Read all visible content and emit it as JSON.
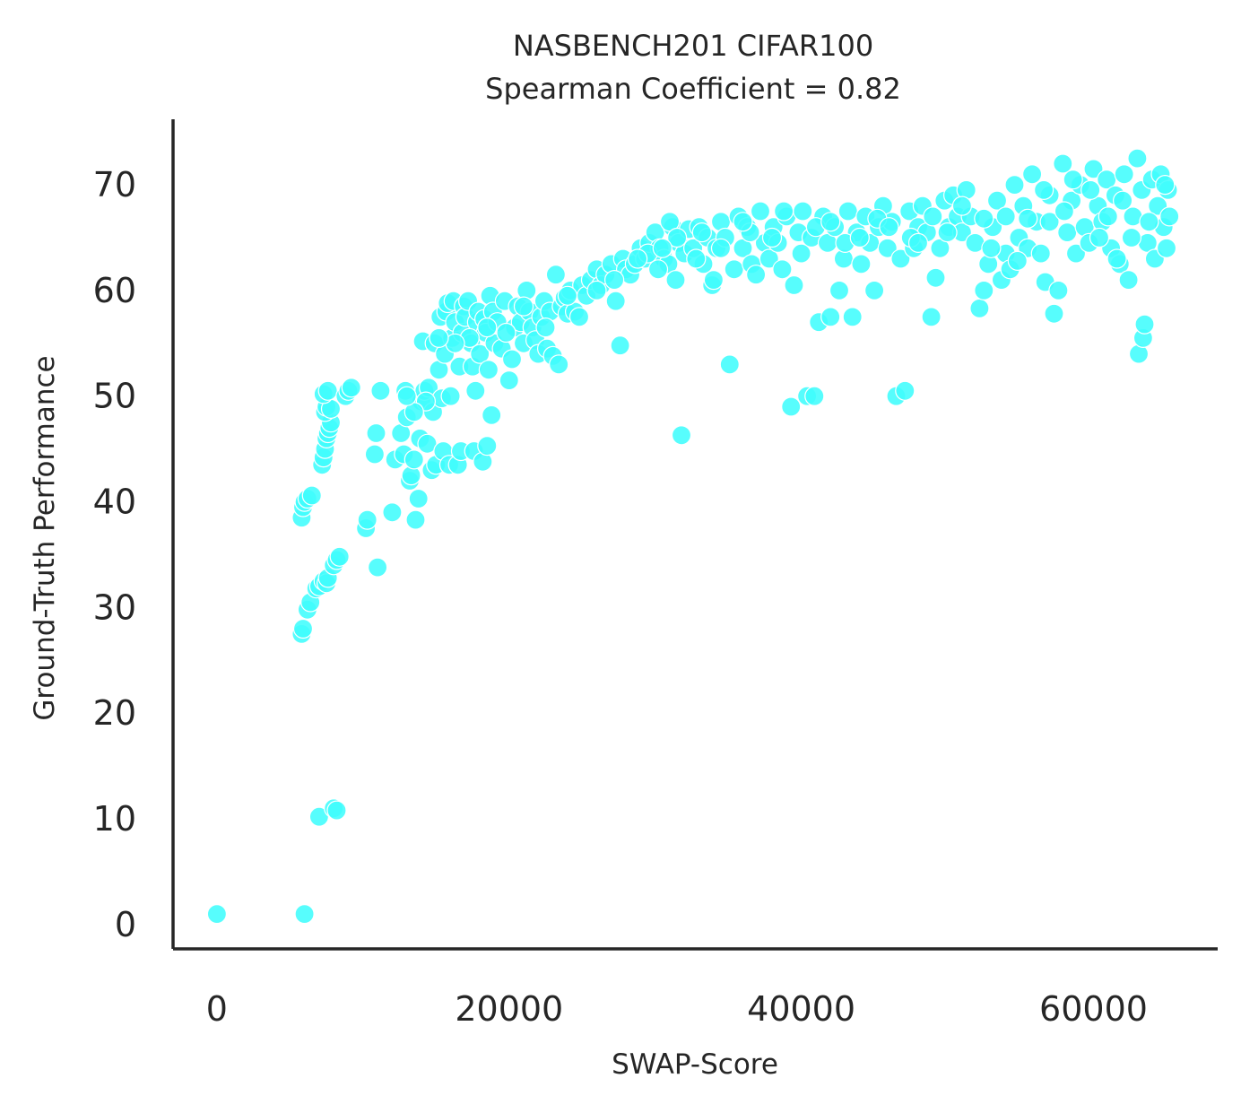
{
  "chart_data": {
    "type": "scatter",
    "title": "NASBENCH201 CIFAR100",
    "subtitle": "Spearman Coefficient = 0.82",
    "xlabel": "SWAP-Score",
    "ylabel": "Ground-Truth Performance",
    "xlim": [
      -3000,
      68500
    ],
    "ylim": [
      -2.3,
      76.2
    ],
    "xticks": [
      0,
      20000,
      40000,
      60000
    ],
    "yticks": [
      0,
      10,
      20,
      30,
      40,
      50,
      60,
      70
    ],
    "xtick_labels": [
      "0",
      "20000",
      "40000",
      "60000"
    ],
    "ytick_labels": [
      "0",
      "10",
      "20",
      "30",
      "40",
      "50",
      "60",
      "70"
    ],
    "grid": false,
    "legend": "none",
    "marker_color": "#40fdfd",
    "spines": [
      "left",
      "bottom"
    ],
    "points": [
      [
        0,
        1.0
      ],
      [
        6000,
        1.0
      ],
      [
        7000,
        10.2
      ],
      [
        8000,
        11.0
      ],
      [
        8200,
        10.8
      ],
      [
        5800,
        27.5
      ],
      [
        5900,
        28.0
      ],
      [
        6200,
        29.8
      ],
      [
        6400,
        30.5
      ],
      [
        6800,
        31.8
      ],
      [
        7000,
        32.0
      ],
      [
        7300,
        32.5
      ],
      [
        7500,
        32.3
      ],
      [
        7600,
        32.8
      ],
      [
        8000,
        34.0
      ],
      [
        8200,
        34.5
      ],
      [
        8400,
        34.8
      ],
      [
        5800,
        38.5
      ],
      [
        5900,
        39.5
      ],
      [
        6000,
        40.0
      ],
      [
        6200,
        40.3
      ],
      [
        6500,
        40.6
      ],
      [
        7200,
        43.5
      ],
      [
        7300,
        44.2
      ],
      [
        7400,
        45.0
      ],
      [
        7500,
        46.0
      ],
      [
        7600,
        46.5
      ],
      [
        7700,
        47.0
      ],
      [
        7800,
        47.5
      ],
      [
        7400,
        48.5
      ],
      [
        7500,
        49.0
      ],
      [
        7800,
        48.8
      ],
      [
        7300,
        50.2
      ],
      [
        7600,
        50.5
      ],
      [
        8800,
        50.0
      ],
      [
        9000,
        50.5
      ],
      [
        9200,
        50.8
      ],
      [
        10200,
        37.5
      ],
      [
        10300,
        38.3
      ],
      [
        10800,
        44.5
      ],
      [
        10900,
        46.5
      ],
      [
        11000,
        33.8
      ],
      [
        11200,
        50.5
      ],
      [
        12000,
        39.0
      ],
      [
        12200,
        44.0
      ],
      [
        12600,
        46.5
      ],
      [
        12800,
        44.5
      ],
      [
        12900,
        50.5
      ],
      [
        13000,
        48.0
      ],
      [
        13200,
        42.0
      ],
      [
        13300,
        42.5
      ],
      [
        13500,
        44.0
      ],
      [
        13600,
        38.3
      ],
      [
        13800,
        40.3
      ],
      [
        13900,
        46.0
      ],
      [
        14000,
        49.5
      ],
      [
        14100,
        55.2
      ],
      [
        14200,
        50.5
      ],
      [
        14400,
        45.5
      ],
      [
        14500,
        50.8
      ],
      [
        14700,
        43.0
      ],
      [
        14800,
        48.5
      ],
      [
        14900,
        55.0
      ],
      [
        15000,
        43.5
      ],
      [
        15200,
        52.5
      ],
      [
        15300,
        57.5
      ],
      [
        15400,
        49.8
      ],
      [
        15500,
        44.8
      ],
      [
        15600,
        54.0
      ],
      [
        15700,
        58.0
      ],
      [
        15800,
        58.8
      ],
      [
        15900,
        43.5
      ],
      [
        16000,
        50.0
      ],
      [
        16100,
        55.5
      ],
      [
        16200,
        59.0
      ],
      [
        16300,
        57.0
      ],
      [
        16500,
        43.5
      ],
      [
        16600,
        52.8
      ],
      [
        16700,
        44.8
      ],
      [
        16800,
        56.0
      ],
      [
        16900,
        58.5
      ],
      [
        17000,
        57.5
      ],
      [
        17200,
        59.0
      ],
      [
        17400,
        55.0
      ],
      [
        17500,
        52.8
      ],
      [
        17600,
        44.8
      ],
      [
        17700,
        50.5
      ],
      [
        17800,
        57.0
      ],
      [
        17900,
        58.0
      ],
      [
        18000,
        54.0
      ],
      [
        18200,
        43.8
      ],
      [
        18300,
        57.3
      ],
      [
        18400,
        56.0
      ],
      [
        18500,
        45.3
      ],
      [
        18600,
        52.5
      ],
      [
        18700,
        59.5
      ],
      [
        18800,
        48.2
      ],
      [
        18900,
        58.0
      ],
      [
        19000,
        55.0
      ],
      [
        19200,
        57.0
      ],
      [
        19500,
        54.5
      ],
      [
        19700,
        59.0
      ],
      [
        20000,
        51.5
      ],
      [
        20200,
        53.5
      ],
      [
        20400,
        56.5
      ],
      [
        20600,
        58.5
      ],
      [
        20800,
        57.0
      ],
      [
        21000,
        55.0
      ],
      [
        21200,
        60.0
      ],
      [
        21400,
        58.0
      ],
      [
        21600,
        56.5
      ],
      [
        21800,
        55.3
      ],
      [
        22000,
        54.0
      ],
      [
        22200,
        57.5
      ],
      [
        22400,
        59.0
      ],
      [
        22600,
        54.5
      ],
      [
        22800,
        58.0
      ],
      [
        23000,
        53.8
      ],
      [
        23200,
        61.5
      ],
      [
        23400,
        53.0
      ],
      [
        23600,
        58.5
      ],
      [
        23800,
        59.3
      ],
      [
        24000,
        57.8
      ],
      [
        24200,
        60.0
      ],
      [
        24500,
        58.0
      ],
      [
        24800,
        57.5
      ],
      [
        25000,
        60.5
      ],
      [
        25300,
        59.5
      ],
      [
        25600,
        61.0
      ],
      [
        26000,
        62.0
      ],
      [
        26300,
        60.5
      ],
      [
        26600,
        61.5
      ],
      [
        27000,
        62.5
      ],
      [
        27300,
        59.0
      ],
      [
        27600,
        54.8
      ],
      [
        27800,
        63.0
      ],
      [
        28000,
        62.0
      ],
      [
        28300,
        61.5
      ],
      [
        28600,
        62.5
      ],
      [
        29000,
        64.0
      ],
      [
        29300,
        63.0
      ],
      [
        29600,
        64.5
      ],
      [
        30000,
        65.5
      ],
      [
        30300,
        64.0
      ],
      [
        30600,
        63.0
      ],
      [
        30900,
        62.5
      ],
      [
        31200,
        66.0
      ],
      [
        31400,
        61.0
      ],
      [
        31600,
        64.5
      ],
      [
        31800,
        46.3
      ],
      [
        32000,
        63.5
      ],
      [
        32300,
        65.8
      ],
      [
        32600,
        64.0
      ],
      [
        33000,
        66.0
      ],
      [
        33300,
        62.5
      ],
      [
        33600,
        65.0
      ],
      [
        33900,
        60.5
      ],
      [
        34200,
        64.0
      ],
      [
        34500,
        66.5
      ],
      [
        34800,
        65.0
      ],
      [
        35100,
        53.0
      ],
      [
        35400,
        62.0
      ],
      [
        35700,
        67.0
      ],
      [
        36000,
        64.0
      ],
      [
        36300,
        66.0
      ],
      [
        36600,
        62.5
      ],
      [
        36900,
        61.5
      ],
      [
        37200,
        67.5
      ],
      [
        37500,
        64.5
      ],
      [
        37800,
        63.0
      ],
      [
        38100,
        66.0
      ],
      [
        38400,
        64.5
      ],
      [
        38700,
        62.0
      ],
      [
        39000,
        67.0
      ],
      [
        39300,
        49.0
      ],
      [
        39500,
        60.5
      ],
      [
        39800,
        65.5
      ],
      [
        40100,
        67.5
      ],
      [
        40400,
        50.0
      ],
      [
        40700,
        65.0
      ],
      [
        40900,
        50.0
      ],
      [
        41200,
        57.0
      ],
      [
        41500,
        67.0
      ],
      [
        41800,
        64.5
      ],
      [
        42000,
        57.5
      ],
      [
        42300,
        66.0
      ],
      [
        42600,
        60.0
      ],
      [
        42900,
        63.0
      ],
      [
        43200,
        67.5
      ],
      [
        43500,
        57.5
      ],
      [
        43800,
        65.5
      ],
      [
        44100,
        62.5
      ],
      [
        44400,
        67.0
      ],
      [
        44700,
        64.5
      ],
      [
        45000,
        60.0
      ],
      [
        45300,
        66.0
      ],
      [
        45600,
        68.0
      ],
      [
        45900,
        64.0
      ],
      [
        46200,
        66.5
      ],
      [
        46500,
        50.0
      ],
      [
        46800,
        63.0
      ],
      [
        47100,
        50.5
      ],
      [
        47400,
        67.5
      ],
      [
        47700,
        64.0
      ],
      [
        48000,
        66.0
      ],
      [
        48300,
        68.0
      ],
      [
        48600,
        65.5
      ],
      [
        48900,
        57.5
      ],
      [
        49200,
        61.2
      ],
      [
        49500,
        64.0
      ],
      [
        49800,
        68.5
      ],
      [
        50100,
        66.0
      ],
      [
        50400,
        69.0
      ],
      [
        50700,
        67.0
      ],
      [
        51000,
        65.5
      ],
      [
        51300,
        69.5
      ],
      [
        51600,
        67.0
      ],
      [
        51900,
        64.5
      ],
      [
        52200,
        58.3
      ],
      [
        52500,
        60.0
      ],
      [
        52800,
        62.5
      ],
      [
        53100,
        66.0
      ],
      [
        53400,
        68.5
      ],
      [
        53700,
        61.0
      ],
      [
        54000,
        63.5
      ],
      [
        54300,
        62.0
      ],
      [
        54600,
        70.0
      ],
      [
        54900,
        65.0
      ],
      [
        55200,
        68.0
      ],
      [
        55500,
        64.0
      ],
      [
        55800,
        71.0
      ],
      [
        56100,
        66.5
      ],
      [
        56400,
        63.5
      ],
      [
        56700,
        60.8
      ],
      [
        57000,
        69.0
      ],
      [
        57300,
        57.8
      ],
      [
        57600,
        60.0
      ],
      [
        57900,
        72.0
      ],
      [
        58200,
        65.5
      ],
      [
        58500,
        68.5
      ],
      [
        58800,
        63.5
      ],
      [
        59100,
        70.0
      ],
      [
        59400,
        66.0
      ],
      [
        59700,
        64.5
      ],
      [
        60000,
        71.5
      ],
      [
        60300,
        68.0
      ],
      [
        60600,
        66.5
      ],
      [
        60900,
        70.5
      ],
      [
        61200,
        64.0
      ],
      [
        61500,
        69.0
      ],
      [
        61800,
        62.5
      ],
      [
        62100,
        71.0
      ],
      [
        62400,
        61.0
      ],
      [
        62700,
        67.0
      ],
      [
        63000,
        72.5
      ],
      [
        63100,
        54.0
      ],
      [
        63300,
        69.5
      ],
      [
        63400,
        55.5
      ],
      [
        63500,
        56.8
      ],
      [
        63700,
        64.5
      ],
      [
        64000,
        70.5
      ],
      [
        64200,
        63.0
      ],
      [
        64400,
        68.0
      ],
      [
        64600,
        71.0
      ],
      [
        64800,
        66.0
      ],
      [
        65000,
        64.0
      ],
      [
        65100,
        69.5
      ],
      [
        65200,
        67.0
      ],
      [
        29500,
        63.5
      ],
      [
        30200,
        62.0
      ],
      [
        31000,
        66.5
      ],
      [
        32800,
        63.0
      ],
      [
        34000,
        61.0
      ],
      [
        36500,
        65.5
      ],
      [
        38800,
        67.5
      ],
      [
        41000,
        66.0
      ],
      [
        43000,
        64.5
      ],
      [
        45200,
        66.8
      ],
      [
        47500,
        65.0
      ],
      [
        49000,
        67.0
      ],
      [
        51000,
        68.0
      ],
      [
        53000,
        64.0
      ],
      [
        54800,
        62.8
      ],
      [
        55500,
        66.8
      ],
      [
        57000,
        66.5
      ],
      [
        58000,
        67.5
      ],
      [
        59800,
        69.5
      ],
      [
        61000,
        67.0
      ],
      [
        62000,
        68.5
      ],
      [
        63800,
        66.5
      ],
      [
        64900,
        70.0
      ],
      [
        62600,
        65.0
      ],
      [
        61600,
        63.0
      ],
      [
        60400,
        65.0
      ],
      [
        58600,
        70.5
      ],
      [
        56600,
        69.5
      ],
      [
        54000,
        67.0
      ],
      [
        52500,
        66.8
      ],
      [
        50000,
        65.5
      ],
      [
        48000,
        64.5
      ],
      [
        46000,
        66.0
      ],
      [
        44000,
        65.0
      ],
      [
        42000,
        66.5
      ],
      [
        40000,
        63.5
      ],
      [
        38000,
        65.0
      ],
      [
        36000,
        66.5
      ],
      [
        34500,
        64.0
      ],
      [
        33200,
        65.5
      ],
      [
        31500,
        65.0
      ],
      [
        30500,
        64.0
      ],
      [
        28800,
        63.0
      ],
      [
        27200,
        61.0
      ],
      [
        26000,
        60.0
      ],
      [
        24000,
        59.5
      ],
      [
        22500,
        56.5
      ],
      [
        21000,
        58.5
      ],
      [
        19800,
        56.0
      ],
      [
        18500,
        56.5
      ],
      [
        17300,
        55.5
      ],
      [
        16300,
        55.0
      ],
      [
        15200,
        55.5
      ],
      [
        14300,
        49.5
      ],
      [
        13500,
        48.5
      ],
      [
        13000,
        50.0
      ]
    ]
  }
}
